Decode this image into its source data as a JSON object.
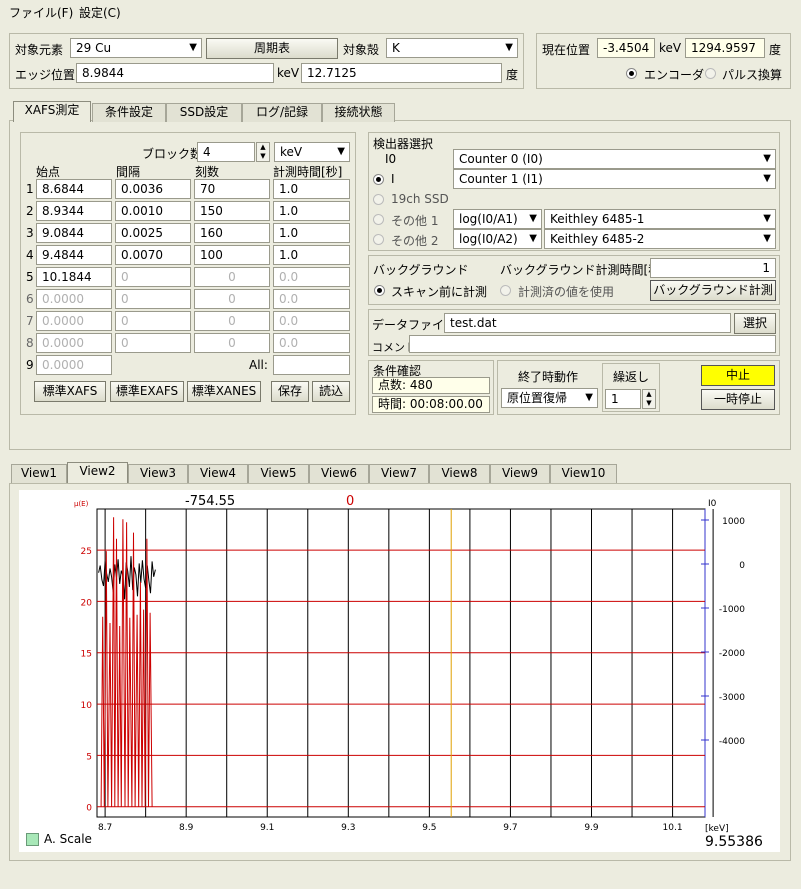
{
  "menu": {
    "file": "ファイル(F)",
    "settings": "設定(C)"
  },
  "target": {
    "element_label": "対象元素",
    "element_value": "29 Cu",
    "periodic_button": "周期表",
    "shell_label": "対象殻",
    "shell_value": "K",
    "edge_label": "エッジ位置",
    "edge_kev": "8.9844",
    "kev_unit": "keV",
    "edge_deg": "12.7125",
    "deg_unit": "度"
  },
  "position": {
    "label": "現在位置",
    "kev_value": "-3.4504",
    "kev_unit": "keV",
    "deg_value": "1294.9597",
    "deg_unit": "度",
    "encoder_label": "エンコーダ",
    "pulse_label": "パルス換算"
  },
  "tabs": [
    "XAFS測定",
    "条件設定",
    "SSD設定",
    "ログ/記録",
    "接続状態"
  ],
  "blocks": {
    "count_label": "ブロック数",
    "count_value": "4",
    "unit_value": "keV",
    "headers": [
      "始点",
      "間隔",
      "刻数",
      "計測時間[秒]"
    ],
    "rows": [
      {
        "n": "1",
        "start": "8.6844",
        "step": "0.0036",
        "count": "70",
        "time": "1.0"
      },
      {
        "n": "2",
        "start": "8.9344",
        "step": "0.0010",
        "count": "150",
        "time": "1.0"
      },
      {
        "n": "3",
        "start": "9.0844",
        "step": "0.0025",
        "count": "160",
        "time": "1.0"
      },
      {
        "n": "4",
        "start": "9.4844",
        "step": "0.0070",
        "count": "100",
        "time": "1.0"
      },
      {
        "n": "5",
        "start": "10.1844",
        "step": "0",
        "count": "0",
        "time": "0.0"
      },
      {
        "n": "6",
        "start": "0.0000",
        "step": "0",
        "count": "0",
        "time": "0.0"
      },
      {
        "n": "7",
        "start": "0.0000",
        "step": "0",
        "count": "0",
        "time": "0.0"
      },
      {
        "n": "8",
        "start": "0.0000",
        "step": "0",
        "count": "0",
        "time": "0.0"
      },
      {
        "n": "9",
        "start": "0.0000"
      }
    ],
    "all_label": "All:",
    "all_value": "",
    "buttons": {
      "xafs": "標準XAFS",
      "exafs": "標準EXAFS",
      "xanes": "標準XANES",
      "save": "保存",
      "load": "読込"
    }
  },
  "detector": {
    "title": "検出器選択",
    "i0_label": "I0",
    "i0_value": "Counter 0 (I0)",
    "i_label": "I",
    "i_value": "Counter 1 (I1)",
    "ssd_label": "19ch SSD",
    "other1_label": "その他 1",
    "other1_formula": "log(I0/A1)",
    "other1_device": "Keithley 6485-1",
    "other2_label": "その他 2",
    "other2_formula": "log(I0/A2)",
    "other2_device": "Keithley 6485-2"
  },
  "background": {
    "title": "バックグラウンド",
    "time_label": "バックグラウンド計測時間[秒]",
    "time_value": "1",
    "before_label": "スキャン前に計測",
    "measured_label": "計測済の値を使用",
    "measure_button": "バックグラウンド計測"
  },
  "datafile": {
    "label": "データファイル",
    "value": "test.dat",
    "select_button": "選択",
    "comment_label": "コメント",
    "comment_value": ""
  },
  "confirm": {
    "title": "条件確認",
    "points": "点数:  480",
    "time": "時間: 00:08:00.00"
  },
  "end_action": {
    "title": "終了時動作",
    "value": "原位置復帰"
  },
  "repeat": {
    "title": "繰返し",
    "value": "1"
  },
  "controls": {
    "stop": "中止",
    "pause": "一時停止",
    "stop_color": "#ffff00"
  },
  "view_tabs": [
    "View1",
    "View2",
    "View3",
    "View4",
    "View5",
    "View6",
    "View7",
    "View8",
    "View9",
    "View10"
  ],
  "chart_data": {
    "type": "line",
    "left_axis_label": "μ(E)",
    "right_axis_label": "I0",
    "header_left": "-754.55",
    "header_center": "0",
    "x_unit": "[keV]",
    "xlim": [
      8.68,
      10.18
    ],
    "x_ticks": [
      "8.7",
      "8.9",
      "9.1",
      "9.3",
      "9.5",
      "9.7",
      "9.9",
      "10.1"
    ],
    "ylim_left": [
      -1,
      29
    ],
    "y_ticks_left": [
      "0",
      "5",
      "10",
      "15",
      "20",
      "25"
    ],
    "ylim_right": [
      -5750,
      1250
    ],
    "y_ticks_right": [
      "1000",
      "0",
      "-1000",
      "-2000",
      "-3000",
      "-4000"
    ],
    "cursor_x": 9.55386,
    "cursor_label": "9.55386",
    "legend": "A. Scale",
    "series": [
      {
        "color": "#000000",
        "x": [
          8.684,
          8.688,
          8.692,
          8.696,
          8.7,
          8.704,
          8.708,
          8.712,
          8.716,
          8.72,
          8.724,
          8.728,
          8.732,
          8.736,
          8.74,
          8.744,
          8.748,
          8.752,
          8.756,
          8.76,
          8.764,
          8.768,
          8.772,
          8.776,
          8.78,
          8.784,
          8.788,
          8.792,
          8.796,
          8.8,
          8.804,
          8.808,
          8.812,
          8.816,
          8.82,
          8.824
        ],
        "y": [
          22.8,
          23.5,
          22.1,
          21.5,
          23.9,
          22.7,
          21.9,
          23.2,
          22.4,
          20.9,
          23.6,
          22.3,
          24.1,
          21.7,
          23.0,
          22.5,
          20.2,
          23.8,
          22.9,
          21.4,
          24.4,
          21.1,
          23.3,
          22.6,
          20.5,
          23.7,
          21.8,
          24.0,
          22.2,
          21.3,
          23.5,
          22.0,
          20.8,
          23.9,
          22.4,
          23.1
        ]
      },
      {
        "color": "#cc0000",
        "x": [
          8.69,
          8.694,
          8.698,
          8.703,
          8.707,
          8.712,
          8.716,
          8.721,
          8.724,
          8.728,
          8.732,
          8.736,
          8.74,
          8.744,
          8.749,
          8.753,
          8.757,
          8.761,
          8.766,
          8.77,
          8.774,
          8.779,
          8.783,
          8.787,
          8.791,
          8.795,
          8.799,
          8.803,
          8.807,
          8.811,
          8.816
        ],
        "y": [
          0,
          18.5,
          0,
          24.9,
          0,
          17.9,
          0,
          28.2,
          0,
          26.1,
          0,
          17.6,
          0,
          28.0,
          0,
          27.7,
          0,
          18.4,
          0,
          26.7,
          0,
          18.7,
          0,
          21.9,
          0,
          19.2,
          0,
          26.1,
          0,
          18.9,
          0
        ]
      }
    ]
  }
}
